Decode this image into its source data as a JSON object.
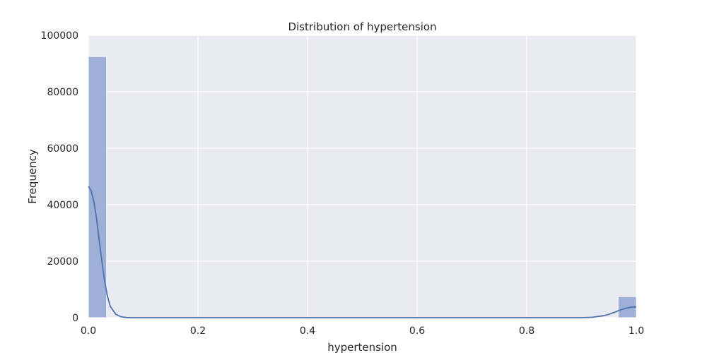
{
  "chart_data": {
    "type": "bar",
    "title": "Distribution of hypertension",
    "xlabel": "hypertension",
    "ylabel": "Frequency",
    "xlim": [
      0,
      1
    ],
    "ylim": [
      0,
      100000
    ],
    "x_ticks": [
      0.0,
      0.2,
      0.4,
      0.6,
      0.8,
      1.0
    ],
    "x_tick_labels": [
      "0.0",
      "0.2",
      "0.4",
      "0.6",
      "0.8",
      "1.0"
    ],
    "y_ticks": [
      0,
      20000,
      40000,
      60000,
      80000,
      100000
    ],
    "y_tick_labels": [
      "0",
      "20000",
      "40000",
      "60000",
      "80000",
      "100000"
    ],
    "grid": true,
    "bins": [
      {
        "x0": 0.0,
        "x1": 0.0333,
        "count": 92500
      },
      {
        "x1": 1.0,
        "x0": 0.9667,
        "count": 7500
      }
    ],
    "kde": {
      "x": [
        0.0,
        0.005,
        0.01,
        0.015,
        0.02,
        0.025,
        0.03,
        0.035,
        0.04,
        0.05,
        0.06,
        0.07,
        0.08,
        0.1,
        0.2,
        0.4,
        0.6,
        0.8,
        0.9,
        0.92,
        0.94,
        0.95,
        0.96,
        0.97,
        0.98,
        0.99,
        1.0
      ],
      "y": [
        46500,
        45000,
        41000,
        35000,
        27000,
        19500,
        12500,
        7500,
        4000,
        1200,
        300,
        60,
        0,
        0,
        0,
        0,
        0,
        0,
        0,
        150,
        700,
        1200,
        1900,
        2700,
        3300,
        3700,
        3800
      ]
    },
    "colors": {
      "background": "#eaeaf2",
      "grid": "#ffffff",
      "bar_fill": "#9fb0d7",
      "bar_edge": "#ffffff",
      "kde_line": "#4c72b0"
    }
  }
}
